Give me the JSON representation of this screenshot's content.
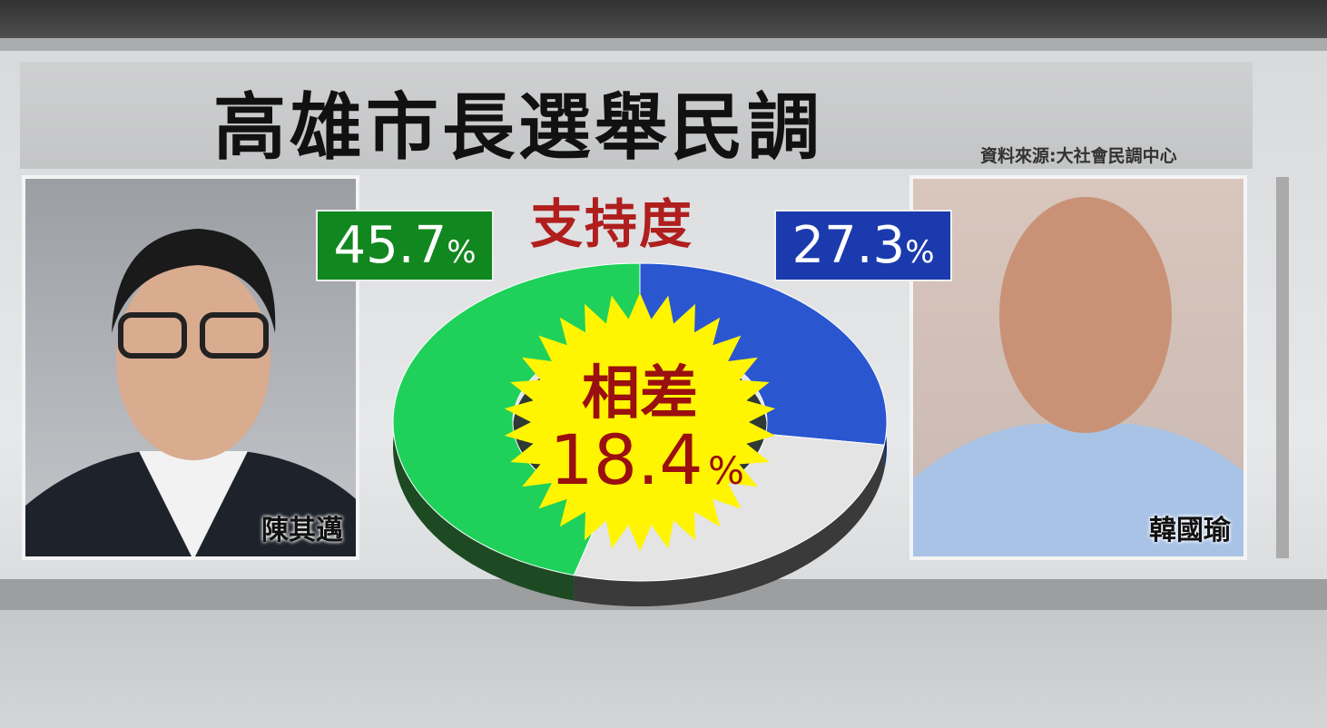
{
  "header": {
    "title": "高雄市長選舉民調",
    "source": "資料來源:大社會民調中心"
  },
  "candidates": [
    {
      "name": "陳其邁",
      "percent_label": "45.7",
      "color": "#1fd15a",
      "box_color": "#11871f"
    },
    {
      "name": "韓國瑜",
      "percent_label": "27.3",
      "color": "#2a56d0",
      "box_color": "#1b3aae"
    }
  ],
  "percent_sign": "%",
  "chart_data": {
    "type": "pie",
    "style": "3d-donut",
    "title": "支持度",
    "slices": [
      {
        "label": "陳其邁",
        "value": 45.7,
        "color": "#1fd15a"
      },
      {
        "label": "韓國瑜",
        "value": 27.3,
        "color": "#2a56d0"
      },
      {
        "label": "",
        "value": 27.0,
        "color": "#e4e4e4"
      }
    ],
    "center_label": {
      "line1": "相差",
      "line2": "18.4",
      "unit": "%"
    }
  }
}
